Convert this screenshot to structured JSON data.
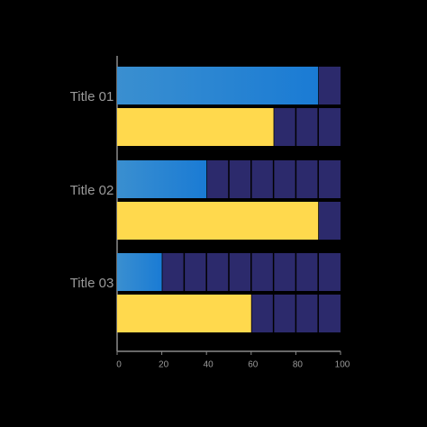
{
  "chart_data": {
    "type": "hbar",
    "categories": [
      "Title 01",
      "Title 02",
      "Title 03"
    ],
    "series": [
      {
        "color": "#2585d4",
        "values": [
          90,
          40,
          20
        ]
      },
      {
        "color": "#ffd94d",
        "values": [
          70,
          90,
          60
        ]
      }
    ],
    "xlim": [
      0,
      100
    ],
    "xticks": [
      0,
      20,
      40,
      60,
      80,
      100
    ]
  }
}
